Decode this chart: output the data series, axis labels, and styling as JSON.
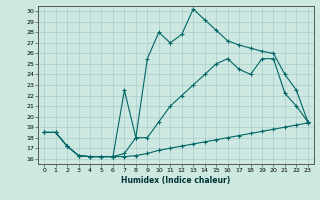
{
  "title": "",
  "xlabel": "Humidex (Indice chaleur)",
  "bg_color": "#cce8e0",
  "grid_color": "#aacccc",
  "line_color": "#006666",
  "xlim": [
    -0.5,
    23.5
  ],
  "ylim": [
    15.5,
    30.5
  ],
  "x_ticks": [
    0,
    1,
    2,
    3,
    4,
    5,
    6,
    7,
    8,
    9,
    10,
    11,
    12,
    13,
    14,
    15,
    16,
    17,
    18,
    19,
    20,
    21,
    22,
    23
  ],
  "y_ticks": [
    16,
    17,
    18,
    19,
    20,
    21,
    22,
    23,
    24,
    25,
    26,
    27,
    28,
    29,
    30
  ],
  "series1_x": [
    0,
    1,
    2,
    3,
    4,
    5,
    6,
    7,
    8,
    9,
    10,
    11,
    12,
    13,
    14,
    15,
    16,
    17,
    18,
    19,
    20,
    21,
    22,
    23
  ],
  "series1_y": [
    18.5,
    18.5,
    17.2,
    16.3,
    16.2,
    16.2,
    16.2,
    16.2,
    16.3,
    16.5,
    16.8,
    17.0,
    17.2,
    17.4,
    17.6,
    17.8,
    18.0,
    18.2,
    18.4,
    18.6,
    18.8,
    19.0,
    19.2,
    19.4
  ],
  "series2_x": [
    0,
    1,
    2,
    3,
    4,
    5,
    6,
    7,
    8,
    9,
    10,
    11,
    12,
    13,
    14,
    15,
    16,
    17,
    18,
    19,
    20,
    21,
    22,
    23
  ],
  "series2_y": [
    18.5,
    18.5,
    17.2,
    16.3,
    16.2,
    16.2,
    16.2,
    16.5,
    18.0,
    18.0,
    19.5,
    21.0,
    22.0,
    23.0,
    24.0,
    25.0,
    25.5,
    24.5,
    24.0,
    25.5,
    25.5,
    22.2,
    21.0,
    19.5
  ],
  "series3_x": [
    0,
    1,
    2,
    3,
    4,
    5,
    6,
    7,
    8,
    9,
    10,
    11,
    12,
    13,
    14,
    15,
    16,
    17,
    18,
    19,
    20,
    21,
    22,
    23
  ],
  "series3_y": [
    18.5,
    18.5,
    17.2,
    16.3,
    16.2,
    16.2,
    16.2,
    22.5,
    18.0,
    25.5,
    28.0,
    27.0,
    27.8,
    30.2,
    29.2,
    28.2,
    27.2,
    26.8,
    26.5,
    26.2,
    26.0,
    24.0,
    22.5,
    19.5
  ]
}
